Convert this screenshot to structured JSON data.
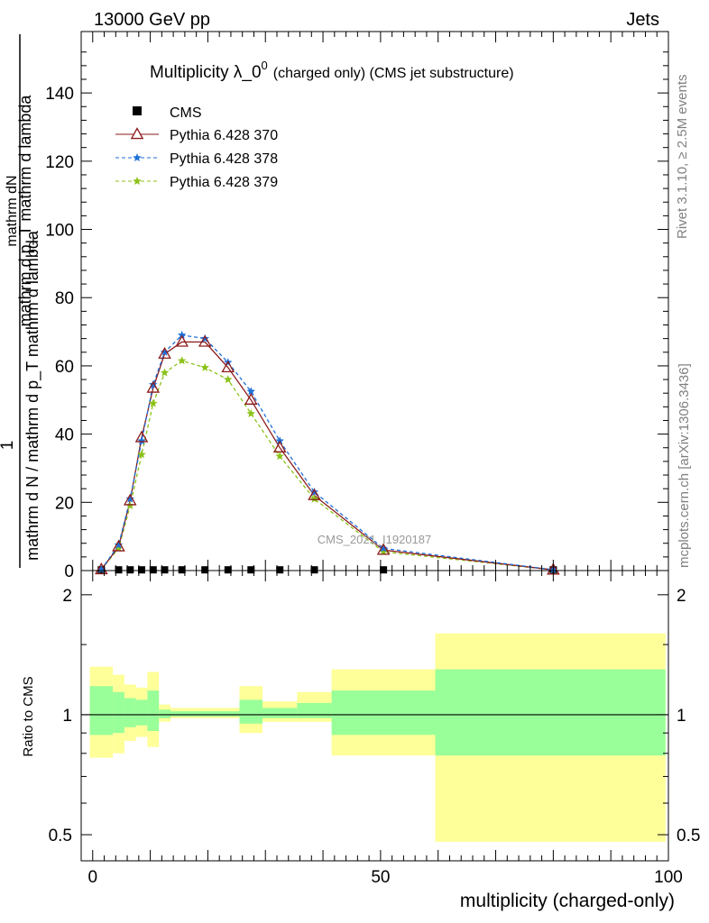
{
  "header": {
    "left": "13000 GeV pp",
    "right": "Jets"
  },
  "side_text": {
    "rivet": "Rivet 3.1.10, ≥ 2.5M events",
    "mcplots": "mcplots.cern.ch [arXiv:1306.3436]"
  },
  "colors": {
    "cms": "#000000",
    "p370": "#8b1a1a",
    "p378": "#1e6fd9",
    "p379": "#8cc21a",
    "band_outer": "#ffff99",
    "band_inner": "#99ff99"
  },
  "chart_data": [
    {
      "type": "scatter",
      "title": "Multiplicity λ_0⁰ (charged only) (CMS jet substructure)",
      "title_main": "Multiplicity λ_0",
      "title_sup": "0",
      "title_tail": "(charged only) (CMS jet substructure)",
      "analysis_tag": "CMS_2021_I1920187",
      "ylabel_num": "1",
      "ylabel_num_sub": "mathrm dN",
      "ylabel_num_main": "mathrm d p_T mathrm d lambda",
      "ylabel_den": "mathrm d N / mathrm d p_T mathrm d lambda",
      "xlim": [
        -2,
        100
      ],
      "ylim": [
        0,
        158
      ],
      "yticks": [
        0,
        20,
        40,
        60,
        80,
        100,
        120,
        140
      ],
      "legend_position": "top-left",
      "series": [
        {
          "name": "CMS",
          "marker": "square",
          "x": [
            1.5,
            4.5,
            6.5,
            8.5,
            10.5,
            12.5,
            15.5,
            19.5,
            23.5,
            27.5,
            32.5,
            38.5,
            50.5,
            80
          ],
          "y": [
            0.2,
            0.2,
            0.2,
            0.2,
            0.2,
            0.2,
            0.2,
            0.2,
            0.2,
            0.2,
            0.2,
            0.2,
            0.2,
            0.2
          ]
        },
        {
          "name": "Pythia 6.428 370",
          "marker": "triangle",
          "line": "solid",
          "x": [
            1.5,
            4.5,
            6.5,
            8.5,
            10.5,
            12.5,
            15.5,
            19.5,
            23.5,
            27.5,
            32.5,
            38.5,
            50.5,
            80
          ],
          "y": [
            0.3,
            7,
            20.5,
            39,
            53.5,
            63.5,
            67,
            67,
            59.5,
            50,
            36,
            22,
            6,
            0.2
          ]
        },
        {
          "name": "Pythia 6.428 378",
          "marker": "star",
          "line": "dashed",
          "x": [
            1.5,
            4.5,
            6.5,
            8.5,
            10.5,
            12.5,
            15.5,
            19.5,
            23.5,
            27.5,
            32.5,
            38.5,
            50.5,
            80
          ],
          "y": [
            0.3,
            7.5,
            21,
            38,
            54.5,
            64,
            69,
            68,
            61,
            52.5,
            38,
            23,
            6.5,
            0.25
          ]
        },
        {
          "name": "Pythia 6.428 379",
          "marker": "star",
          "line": "dashed",
          "x": [
            1.5,
            4.5,
            6.5,
            8.5,
            10.5,
            12.5,
            15.5,
            19.5,
            23.5,
            27.5,
            32.5,
            38.5,
            50.5,
            80
          ],
          "y": [
            0.3,
            6.5,
            19,
            34,
            49,
            58,
            61.5,
            59.5,
            56,
            46,
            33.5,
            21,
            5.5,
            0.2
          ]
        }
      ]
    },
    {
      "type": "area",
      "ylabel": "Ratio to CMS",
      "xlabel": "multiplicity (charged-only)",
      "xlim": [
        -2,
        100
      ],
      "ylim": [
        0.43,
        2.3
      ],
      "log_y": true,
      "xticks": [
        0,
        50,
        100
      ],
      "yticks": [
        0.5,
        1,
        2
      ],
      "reference_line": 1,
      "bins": {
        "edges": [
          -0.5,
          3.5,
          5.5,
          7.5,
          9.5,
          11.5,
          13.5,
          17.5,
          21.5,
          25.5,
          29.5,
          35.5,
          41.5,
          59.5,
          99.5
        ],
        "outer_low": [
          0.78,
          0.8,
          0.86,
          0.88,
          0.83,
          0.96,
          0.98,
          0.98,
          0.98,
          0.9,
          0.96,
          0.96,
          0.79,
          0.48
        ],
        "outer_high": [
          1.32,
          1.26,
          1.19,
          1.17,
          1.28,
          1.06,
          1.04,
          1.04,
          1.04,
          1.18,
          1.08,
          1.14,
          1.3,
          1.6
        ],
        "inner_low": [
          0.89,
          0.9,
          0.93,
          0.94,
          0.91,
          0.98,
          0.99,
          0.99,
          0.99,
          0.95,
          0.98,
          0.98,
          0.89,
          0.79
        ],
        "inner_high": [
          1.18,
          1.14,
          1.1,
          1.09,
          1.15,
          1.03,
          1.02,
          1.02,
          1.02,
          1.09,
          1.04,
          1.07,
          1.15,
          1.3
        ]
      }
    }
  ]
}
